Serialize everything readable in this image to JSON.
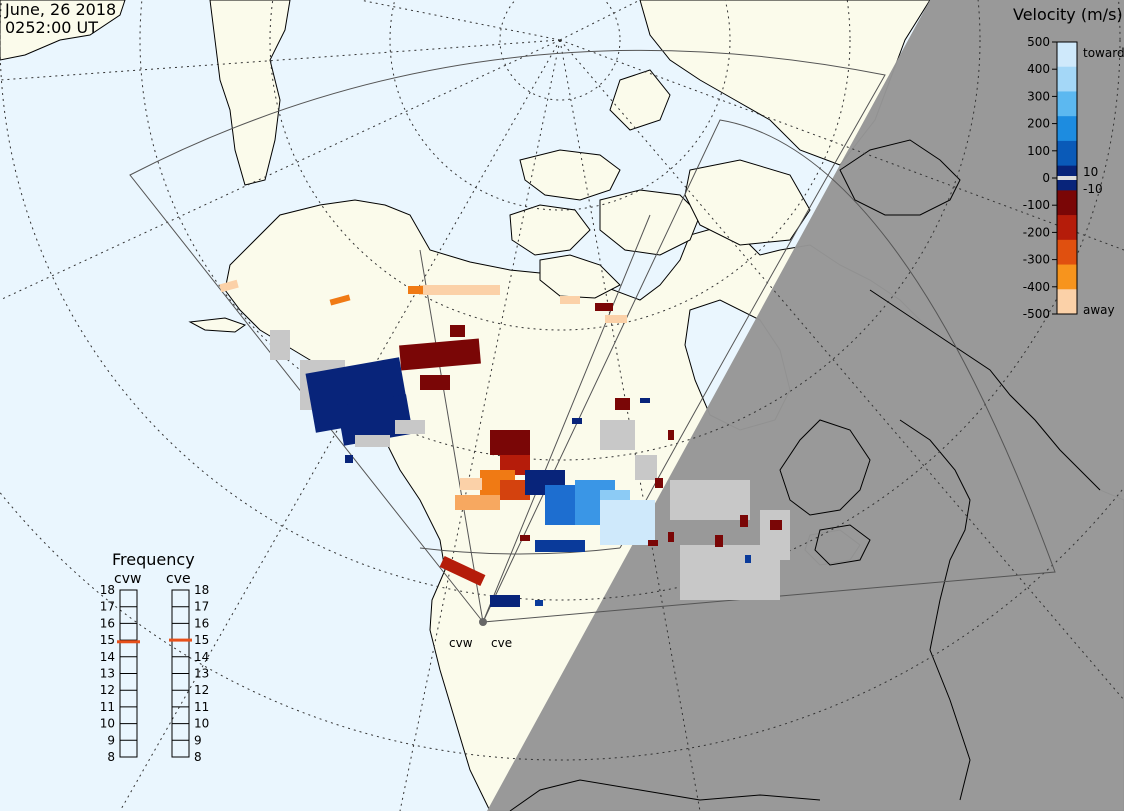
{
  "header": {
    "date": "June, 26 2018",
    "time": "0252:00 UT"
  },
  "colorbar": {
    "title": "Velocity (m/s)",
    "ticks": [
      "500",
      "400",
      "300",
      "200",
      "100",
      "0",
      "-100",
      "-200",
      "-300",
      "-400",
      "-500"
    ],
    "small_positive": "10",
    "small_negative": "-10",
    "toward_label": "toward",
    "away_label": "away"
  },
  "frequency_panel": {
    "title": "Frequency",
    "left_radar": "cvw",
    "right_radar": "cve",
    "ticks": [
      "18",
      "17",
      "16",
      "15",
      "14",
      "13",
      "12",
      "11",
      "10",
      "9",
      "8"
    ],
    "cvw_value_mhz": 14.9,
    "cve_value_mhz": 15.0,
    "marker_color": "#e8501a"
  },
  "radars": {
    "west_label": "cvw",
    "east_label": "cve"
  },
  "colors": {
    "ocean": "#eaf6fe",
    "land": "#fbfbeb",
    "night": "#969696",
    "ground_scatter": "#c8c8c8"
  }
}
